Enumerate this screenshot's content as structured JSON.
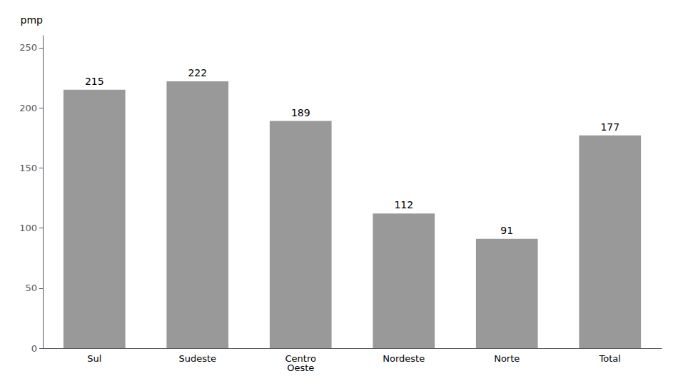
{
  "chart_data": {
    "type": "bar",
    "ylabel": "pmp",
    "categories": [
      "Sul",
      "Sudeste",
      "Centro\nOeste",
      "Nordeste",
      "Norte",
      "Total"
    ],
    "values": [
      215,
      222,
      189,
      112,
      91,
      177
    ],
    "color": "#999999",
    "ylim": [
      0,
      260
    ],
    "yticks": [
      0,
      50,
      100,
      150,
      200,
      250
    ],
    "grid": false,
    "data_labels": true
  }
}
